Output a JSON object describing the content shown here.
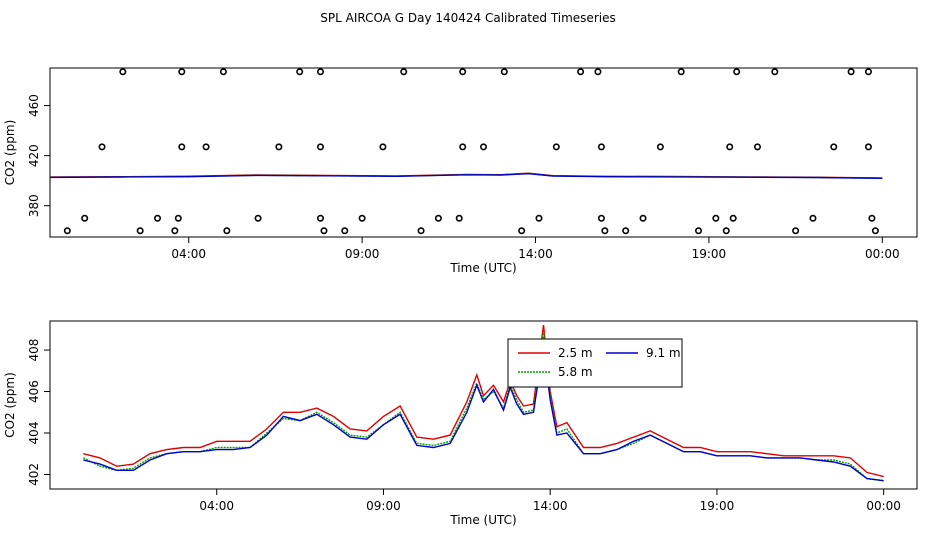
{
  "figure_title": "SPL AIRCOA G  Day 140424  Calibrated Timeseries",
  "colors": {
    "s1": "#e00000",
    "s2": "#00a000",
    "s3": "#0000cc",
    "axis": "#000000"
  },
  "chart_data": [
    {
      "type": "scatter",
      "title": "",
      "xlabel": "Time (UTC)",
      "ylabel": "CO2 (ppm)",
      "xticks": [
        "04:00",
        "09:00",
        "14:00",
        "19:00",
        "00:00"
      ],
      "yticks": [
        "380",
        "420",
        "460"
      ],
      "xlim": [
        0,
        25
      ],
      "ylim": [
        355,
        490
      ],
      "xtick_values": [
        4,
        9,
        14,
        19,
        24
      ],
      "ytick_values": [
        380,
        420,
        460
      ],
      "marker": "open-circle",
      "points": [
        [
          0.5,
          360
        ],
        [
          1.0,
          370
        ],
        [
          1.5,
          427
        ],
        [
          2.1,
          487
        ],
        [
          2.6,
          360
        ],
        [
          3.1,
          370
        ],
        [
          3.6,
          360
        ],
        [
          3.7,
          370
        ],
        [
          3.8,
          427
        ],
        [
          3.8,
          487
        ],
        [
          4.5,
          427
        ],
        [
          5.0,
          487
        ],
        [
          5.1,
          360
        ],
        [
          6.0,
          370
        ],
        [
          6.6,
          427
        ],
        [
          7.2,
          487
        ],
        [
          7.8,
          427
        ],
        [
          7.8,
          487
        ],
        [
          7.8,
          370
        ],
        [
          7.9,
          360
        ],
        [
          8.5,
          360
        ],
        [
          9.0,
          370
        ],
        [
          9.6,
          427
        ],
        [
          10.2,
          487
        ],
        [
          10.7,
          360
        ],
        [
          11.2,
          370
        ],
        [
          11.8,
          370
        ],
        [
          11.9,
          427
        ],
        [
          11.9,
          487
        ],
        [
          12.5,
          427
        ],
        [
          13.1,
          487
        ],
        [
          13.6,
          360
        ],
        [
          14.1,
          370
        ],
        [
          14.6,
          427
        ],
        [
          15.3,
          487
        ],
        [
          15.8,
          487
        ],
        [
          15.9,
          427
        ],
        [
          15.9,
          370
        ],
        [
          16.0,
          360
        ],
        [
          16.6,
          360
        ],
        [
          17.1,
          370
        ],
        [
          17.6,
          427
        ],
        [
          18.2,
          487
        ],
        [
          18.7,
          360
        ],
        [
          19.2,
          370
        ],
        [
          19.5,
          360
        ],
        [
          19.6,
          427
        ],
        [
          19.7,
          370
        ],
        [
          19.8,
          487
        ],
        [
          20.4,
          427
        ],
        [
          20.9,
          487
        ],
        [
          21.5,
          360
        ],
        [
          22.0,
          370
        ],
        [
          22.6,
          427
        ],
        [
          23.1,
          487
        ],
        [
          23.6,
          487
        ],
        [
          23.6,
          427
        ],
        [
          23.7,
          370
        ],
        [
          23.8,
          360
        ]
      ],
      "series": [
        {
          "name": "2.5 m",
          "values": [
            [
              0,
              403.0
            ],
            [
              2,
              403.2
            ],
            [
              4,
              403.6
            ],
            [
              6,
              404.6
            ],
            [
              8,
              404.2
            ],
            [
              10,
              403.8
            ],
            [
              12,
              405.0
            ],
            [
              13,
              404.8
            ],
            [
              13.8,
              406.0
            ],
            [
              14.5,
              404.0
            ],
            [
              16,
              403.5
            ],
            [
              18,
              403.3
            ],
            [
              20,
              403.0
            ],
            [
              22,
              402.8
            ],
            [
              24,
              402.2
            ]
          ]
        },
        {
          "name": "5.8 m",
          "values": [
            [
              0,
              402.8
            ],
            [
              2,
              403.0
            ],
            [
              4,
              403.3
            ],
            [
              6,
              404.3
            ],
            [
              8,
              404.0
            ],
            [
              10,
              403.6
            ],
            [
              12,
              404.8
            ],
            [
              13,
              404.6
            ],
            [
              13.8,
              405.8
            ],
            [
              14.5,
              403.8
            ],
            [
              16,
              403.3
            ],
            [
              18,
              403.1
            ],
            [
              20,
              402.9
            ],
            [
              22,
              402.6
            ],
            [
              24,
              402.0
            ]
          ]
        },
        {
          "name": "9.1 m",
          "values": [
            [
              0,
              402.6
            ],
            [
              2,
              402.9
            ],
            [
              4,
              403.2
            ],
            [
              6,
              404.2
            ],
            [
              8,
              403.9
            ],
            [
              10,
              403.5
            ],
            [
              12,
              404.7
            ],
            [
              13,
              404.5
            ],
            [
              13.8,
              405.6
            ],
            [
              14.5,
              403.7
            ],
            [
              16,
              403.2
            ],
            [
              18,
              403.0
            ],
            [
              20,
              402.8
            ],
            [
              22,
              402.5
            ],
            [
              24,
              401.9
            ]
          ]
        }
      ]
    },
    {
      "type": "line",
      "title": "",
      "xlabel": "Time (UTC)",
      "ylabel": "CO2 (ppm)",
      "xticks": [
        "04:00",
        "09:00",
        "14:00",
        "19:00",
        "00:00"
      ],
      "yticks": [
        "402",
        "404",
        "406",
        "408"
      ],
      "xtick_values": [
        4,
        9,
        14,
        19,
        24
      ],
      "ytick_values": [
        402,
        404,
        406,
        408
      ],
      "xlim": [
        -1,
        25
      ],
      "ylim": [
        401.3,
        409.4
      ],
      "legend": {
        "position": "top-center",
        "entries": [
          "2.5 m",
          "5.8 m",
          "9.1 m"
        ]
      },
      "series": [
        {
          "name": "2.5 m",
          "color": "#e00000",
          "x": [
            0,
            0.5,
            1,
            1.5,
            2,
            2.5,
            3,
            3.5,
            4,
            4.5,
            5,
            5.5,
            6,
            6.5,
            7,
            7.5,
            8,
            8.5,
            9,
            9.5,
            10,
            10.5,
            11,
            11.5,
            11.8,
            12,
            12.3,
            12.6,
            12.8,
            13,
            13.2,
            13.5,
            13.8,
            14,
            14.2,
            14.5,
            15,
            15.5,
            16,
            16.5,
            17,
            17.5,
            18,
            18.5,
            19,
            19.5,
            20,
            20.5,
            21,
            21.5,
            22,
            22.5,
            23,
            23.5,
            24
          ],
          "values": [
            403.0,
            402.8,
            402.4,
            402.5,
            403.0,
            403.2,
            403.3,
            403.3,
            403.6,
            403.6,
            403.6,
            404.2,
            405.0,
            405.0,
            405.2,
            404.8,
            404.2,
            404.1,
            404.8,
            405.3,
            403.8,
            403.7,
            403.9,
            405.5,
            406.8,
            405.8,
            406.3,
            405.5,
            406.5,
            405.8,
            405.3,
            405.4,
            409.2,
            406.0,
            404.3,
            404.5,
            403.3,
            403.3,
            403.5,
            403.8,
            404.1,
            403.7,
            403.3,
            403.3,
            403.1,
            403.1,
            403.1,
            403.0,
            402.9,
            402.9,
            402.9,
            402.9,
            402.8,
            402.1,
            401.9
          ]
        },
        {
          "name": "5.8 m",
          "color": "#00a000",
          "x": [
            0,
            0.5,
            1,
            1.5,
            2,
            2.5,
            3,
            3.5,
            4,
            4.5,
            5,
            5.5,
            6,
            6.5,
            7,
            7.5,
            8,
            8.5,
            9,
            9.5,
            10,
            10.5,
            11,
            11.5,
            11.8,
            12,
            12.3,
            12.6,
            12.8,
            13,
            13.2,
            13.5,
            13.8,
            14,
            14.2,
            14.5,
            15,
            15.5,
            16,
            16.5,
            17,
            17.5,
            18,
            18.5,
            19,
            19.5,
            20,
            20.5,
            21,
            21.5,
            22,
            22.5,
            23,
            23.5,
            24
          ],
          "values": [
            402.8,
            402.4,
            402.2,
            402.3,
            402.8,
            403.0,
            403.1,
            403.1,
            403.3,
            403.3,
            403.3,
            404.0,
            404.7,
            404.6,
            405.0,
            404.5,
            403.9,
            403.8,
            404.4,
            405.0,
            403.5,
            403.4,
            403.6,
            405.2,
            406.4,
            405.6,
            406.0,
            405.2,
            406.3,
            405.6,
            405.0,
            405.1,
            408.9,
            405.8,
            404.0,
            404.2,
            403.0,
            403.0,
            403.2,
            403.5,
            403.9,
            403.5,
            403.1,
            403.1,
            402.9,
            402.9,
            402.9,
            402.8,
            402.8,
            402.8,
            402.7,
            402.7,
            402.5,
            401.8,
            401.7
          ]
        },
        {
          "name": "9.1 m",
          "color": "#0000cc",
          "x": [
            0,
            0.5,
            1,
            1.5,
            2,
            2.5,
            3,
            3.5,
            4,
            4.5,
            5,
            5.5,
            6,
            6.5,
            7,
            7.5,
            8,
            8.5,
            9,
            9.5,
            10,
            10.5,
            11,
            11.5,
            11.8,
            12,
            12.3,
            12.6,
            12.8,
            13,
            13.2,
            13.5,
            13.8,
            14,
            14.2,
            14.5,
            15,
            15.5,
            16,
            16.5,
            17,
            17.5,
            18,
            18.5,
            19,
            19.5,
            20,
            20.5,
            21,
            21.5,
            22,
            22.5,
            23,
            23.5,
            24
          ],
          "values": [
            402.7,
            402.5,
            402.2,
            402.2,
            402.7,
            403.0,
            403.1,
            403.1,
            403.2,
            403.2,
            403.3,
            403.9,
            404.8,
            404.6,
            404.9,
            404.4,
            403.8,
            403.7,
            404.4,
            404.9,
            403.4,
            403.3,
            403.5,
            405.0,
            406.3,
            405.5,
            406.1,
            405.1,
            406.2,
            405.4,
            404.9,
            405.0,
            408.2,
            405.6,
            403.9,
            404.0,
            403.0,
            403.0,
            403.2,
            403.6,
            403.9,
            403.5,
            403.1,
            403.1,
            402.9,
            402.9,
            402.9,
            402.8,
            402.8,
            402.8,
            402.7,
            402.6,
            402.4,
            401.8,
            401.7
          ]
        }
      ]
    }
  ]
}
